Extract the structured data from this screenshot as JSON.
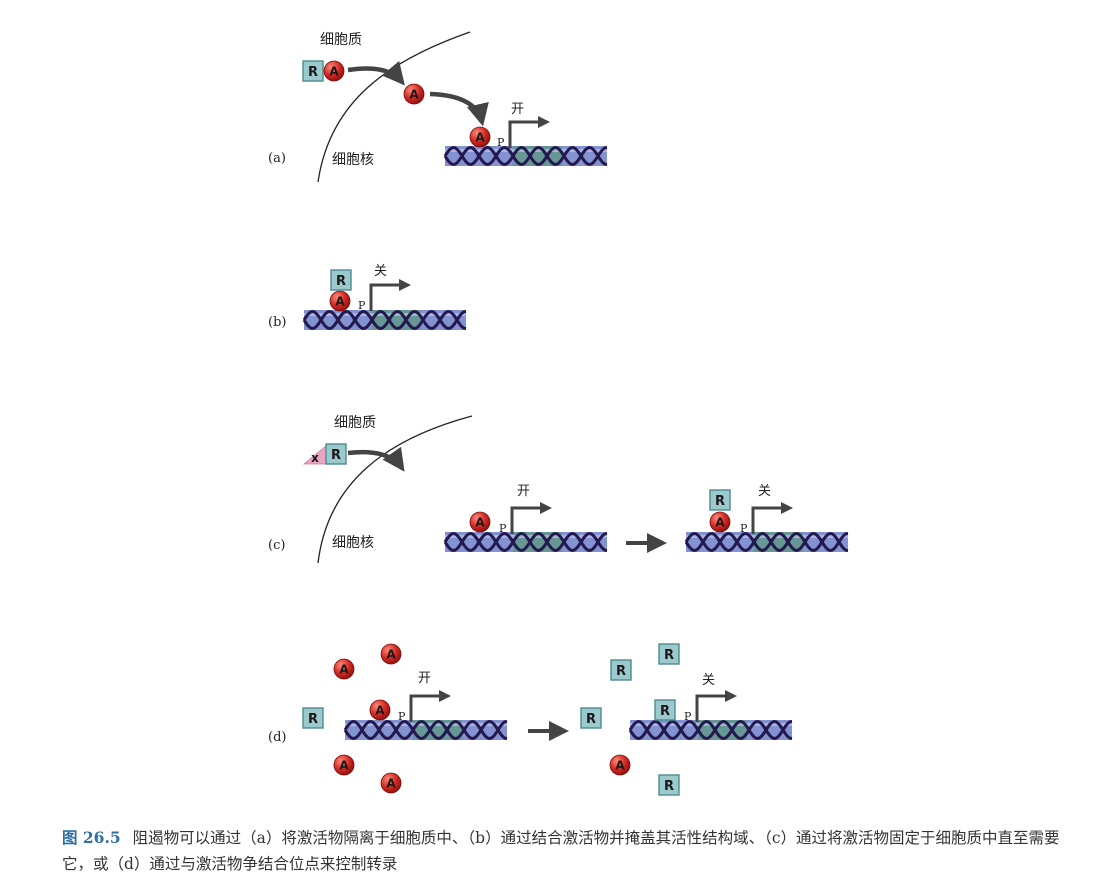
{
  "panels": {
    "a": {
      "label": "(a)",
      "cytoplasm": "细胞质",
      "nucleus": "细胞核",
      "on_label": "开",
      "promoter": "P",
      "repressor_letter": "R",
      "activator_letter": "A"
    },
    "b": {
      "label": "(b)",
      "off_label": "关",
      "promoter": "P",
      "repressor_letter": "R",
      "activator_letter": "A"
    },
    "c": {
      "label": "(c)",
      "cytoplasm": "细胞质",
      "nucleus": "细胞核",
      "x_letter": "x",
      "repressor_letter": "R",
      "activator_letter": "A",
      "on_label": "开",
      "off_label": "关",
      "promoter": "P"
    },
    "d": {
      "label": "(d)",
      "repressor_letter": "R",
      "activator_letter": "A",
      "on_label": "开",
      "off_label": "关",
      "promoter": "P"
    }
  },
  "caption": {
    "figure_number": "图 26.5",
    "text": "阻遏物可以通过（a）将激活物隔离于细胞质中、（b）通过结合激活物并掩盖其活性结构域、（c）通过将激活物固定于细胞质中直至需要它，或（d）通过与激活物争结合位点来控制转录"
  },
  "colors": {
    "activator": "#d32a24",
    "repressor_fill": "#9cc9cc",
    "repressor_border": "#4d8c92",
    "x_fill": "#e8a6c4",
    "dna_band": "#6d7fc8",
    "dna_green": "#4f9b63",
    "dna_strand": "#24194f",
    "arrow": "#444444",
    "caption_number": "#2e6fa6"
  }
}
